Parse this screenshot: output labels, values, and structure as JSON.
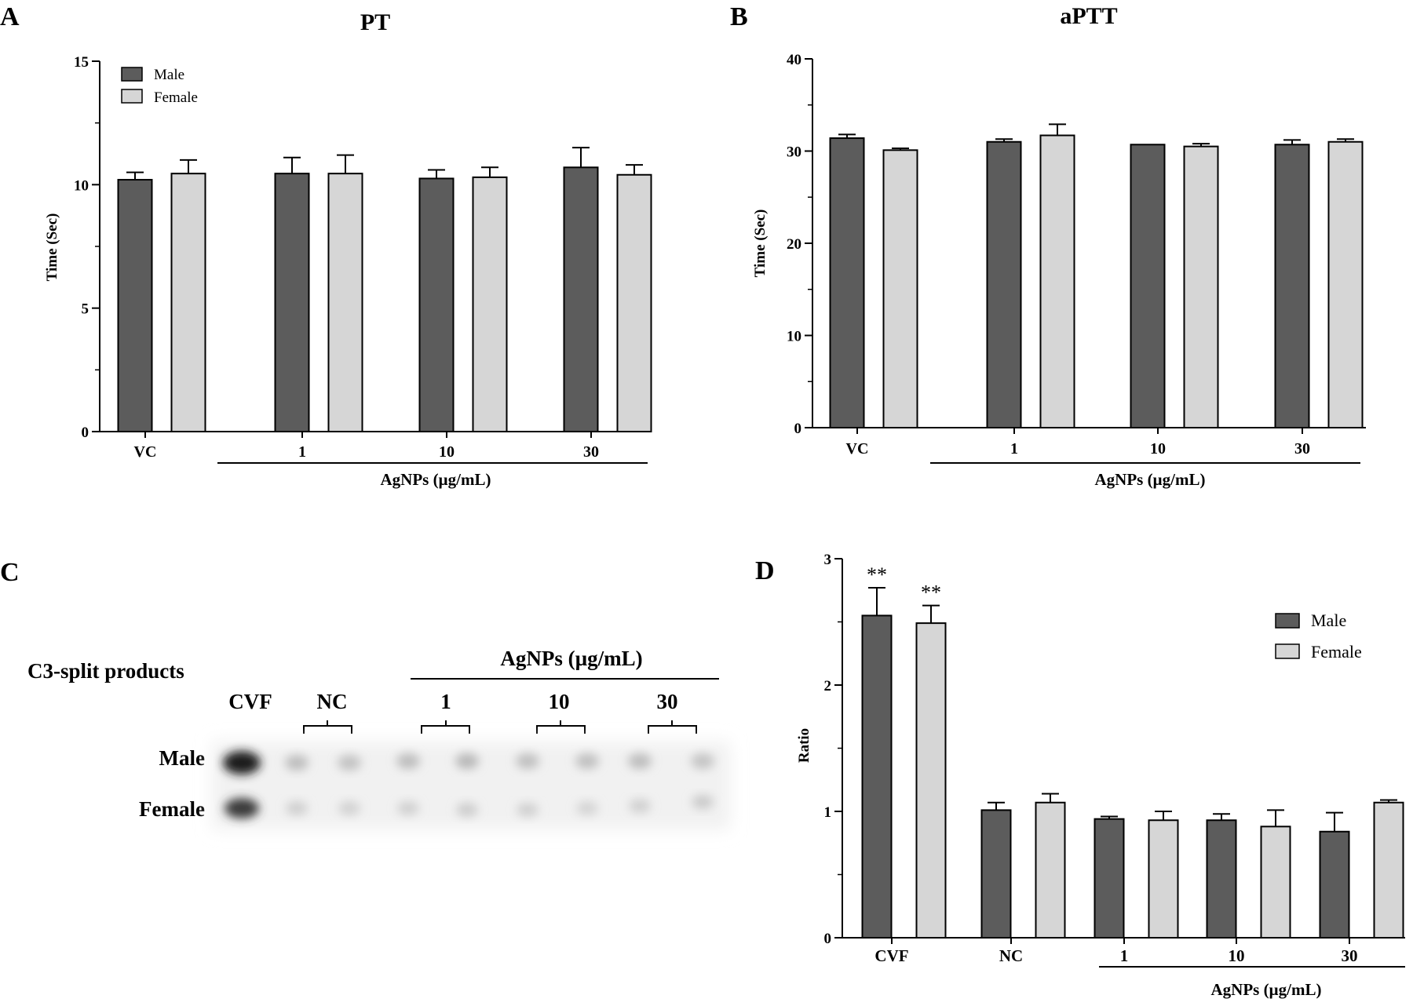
{
  "colors": {
    "male": "#5c5c5c",
    "female": "#d6d6d6",
    "axis": "#000000"
  },
  "chart_data": [
    {
      "panel": "A",
      "type": "bar",
      "title": "PT",
      "xlabel": "",
      "ylabel": "Time (Sec)",
      "ylim": [
        0,
        15
      ],
      "yticks": [
        0,
        5,
        10,
        15
      ],
      "categories": [
        "VC",
        "1",
        "10",
        "30"
      ],
      "group_label": "AgNPs (µg/mL)",
      "legend": {
        "position": "top-left",
        "entries": [
          "Male",
          "Female"
        ]
      },
      "series": [
        {
          "name": "Male",
          "values": [
            10.2,
            10.45,
            10.25,
            10.7
          ],
          "errors": [
            0.3,
            0.65,
            0.35,
            0.8
          ]
        },
        {
          "name": "Female",
          "values": [
            10.45,
            10.45,
            10.3,
            10.4
          ],
          "errors": [
            0.55,
            0.75,
            0.4,
            0.4
          ]
        }
      ]
    },
    {
      "panel": "B",
      "type": "bar",
      "title": "aPTT",
      "xlabel": "",
      "ylabel": "Time (Sec)",
      "ylim": [
        0,
        40
      ],
      "yticks": [
        0,
        10,
        20,
        30,
        40
      ],
      "categories": [
        "VC",
        "1",
        "10",
        "30"
      ],
      "group_label": "AgNPs (µg/mL)",
      "series": [
        {
          "name": "Male",
          "values": [
            31.4,
            31.0,
            30.7,
            30.7
          ],
          "errors": [
            0.4,
            0.3,
            0.0,
            0.5
          ]
        },
        {
          "name": "Female",
          "values": [
            30.1,
            31.7,
            30.5,
            31.0
          ],
          "errors": [
            0.2,
            1.2,
            0.3,
            0.3
          ]
        }
      ]
    },
    {
      "panel": "D",
      "type": "bar",
      "title": "",
      "xlabel": "",
      "ylabel": "Ratio",
      "ylim": [
        0,
        3
      ],
      "yticks": [
        0,
        1,
        2,
        3
      ],
      "categories": [
        "CVF",
        "NC",
        "1",
        "10",
        "30"
      ],
      "group_label": "AgNPs (µg/mL)",
      "legend": {
        "position": "right",
        "entries": [
          "Male",
          "Female"
        ]
      },
      "significance": [
        "**",
        "**",
        "",
        "",
        "",
        "",
        "",
        "",
        "",
        ""
      ],
      "series": [
        {
          "name": "Male",
          "values": [
            2.55,
            1.01,
            0.94,
            0.93,
            0.84
          ],
          "errors": [
            0.22,
            0.06,
            0.02,
            0.05,
            0.15
          ]
        },
        {
          "name": "Female",
          "values": [
            2.49,
            1.07,
            0.93,
            0.88,
            1.07
          ],
          "errors": [
            0.14,
            0.07,
            0.07,
            0.13,
            0.02
          ]
        }
      ]
    }
  ],
  "blot": {
    "panel": "C",
    "title": "C3-split products",
    "group_label": "AgNPs (µg/mL)",
    "lane_labels": [
      "CVF",
      "NC",
      "1",
      "10",
      "30"
    ],
    "row_labels": [
      "Male",
      "Female"
    ]
  }
}
